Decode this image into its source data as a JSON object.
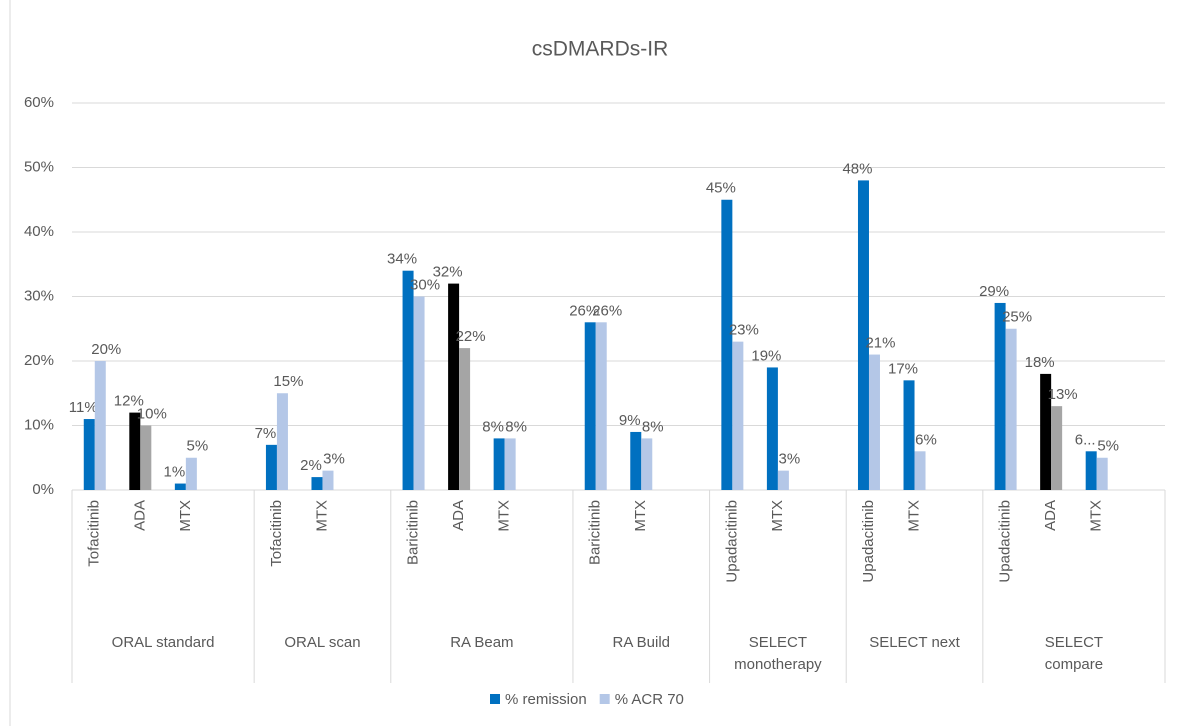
{
  "chart_data": {
    "type": "bar",
    "title": "csDMARDs-IR",
    "groups": [
      {
        "name": "ORAL standard",
        "categories": [
          "Tofacitinib",
          "ADA",
          "MTX",
          null
        ]
      },
      {
        "name": "ORAL scan",
        "categories": [
          "Tofacitinib",
          "MTX",
          null
        ]
      },
      {
        "name": "RA Beam",
        "categories": [
          "Baricitinib",
          "ADA",
          "MTX",
          null
        ]
      },
      {
        "name": "RA Build",
        "categories": [
          "Baricitinib",
          "MTX",
          null
        ]
      },
      {
        "name": "SELECT\nmonotherapy",
        "categories": [
          "Upadacitinib",
          "MTX",
          null
        ]
      },
      {
        "name": "SELECT next",
        "categories": [
          "Upadacitinib",
          "MTX",
          null
        ]
      },
      {
        "name": "SELECT\ncompare",
        "categories": [
          "Upadacitinib",
          "ADA",
          "MTX",
          null
        ]
      }
    ],
    "series": [
      {
        "name": "% remission",
        "color": "#0070c0",
        "values": [
          11,
          12,
          1,
          null,
          7,
          2,
          null,
          34,
          32,
          8,
          null,
          26,
          9,
          null,
          45,
          19,
          null,
          48,
          17,
          null,
          29,
          18,
          6,
          null
        ],
        "value_labels": [
          "11%",
          "12%",
          "1%",
          null,
          "7%",
          "2%",
          null,
          "34%",
          "32%",
          "8%",
          null,
          "26%",
          "9%",
          null,
          "45%",
          "19%",
          null,
          "48%",
          "17%",
          null,
          "29%",
          "18%",
          "6...",
          null
        ],
        "colors": [
          "#0070c0",
          "#000000",
          "#0070c0",
          null,
          "#0070c0",
          "#0070c0",
          null,
          "#0070c0",
          "#000000",
          "#0070c0",
          null,
          "#0070c0",
          "#0070c0",
          null,
          "#0070c0",
          "#0070c0",
          null,
          "#0070c0",
          "#0070c0",
          null,
          "#0070c0",
          "#000000",
          "#0070c0",
          null
        ]
      },
      {
        "name": "% ACR 70",
        "color": "#b4c7e7",
        "values": [
          20,
          10,
          5,
          null,
          15,
          3,
          null,
          30,
          22,
          8,
          null,
          26,
          8,
          null,
          23,
          3,
          null,
          21,
          6,
          null,
          25,
          13,
          5,
          null
        ],
        "value_labels": [
          "20%",
          "10%",
          "5%",
          null,
          "15%",
          "3%",
          null,
          "30%",
          "22%",
          "8%",
          null,
          "26%",
          "8%",
          null,
          "23%",
          "3%",
          null,
          "21%",
          "6%",
          null,
          "25%",
          "13%",
          "5%",
          null
        ],
        "colors": [
          "#b4c7e7",
          "#a5a5a5",
          "#b4c7e7",
          null,
          "#b4c7e7",
          "#b4c7e7",
          null,
          "#b4c7e7",
          "#a5a5a5",
          "#b4c7e7",
          null,
          "#b4c7e7",
          "#b4c7e7",
          null,
          "#b4c7e7",
          "#b4c7e7",
          null,
          "#b4c7e7",
          "#b4c7e7",
          null,
          "#b4c7e7",
          "#a5a5a5",
          "#b4c7e7",
          null
        ]
      }
    ],
    "ylim": [
      0,
      60
    ],
    "yticks": [
      {
        "value": 0,
        "label": "0%"
      },
      {
        "value": 10,
        "label": "10%"
      },
      {
        "value": 20,
        "label": "20%"
      },
      {
        "value": 30,
        "label": "30%"
      },
      {
        "value": 40,
        "label": "40%"
      },
      {
        "value": 50,
        "label": "50%"
      },
      {
        "value": 60,
        "label": "60%"
      }
    ],
    "grid": true,
    "legend": "bottom"
  }
}
